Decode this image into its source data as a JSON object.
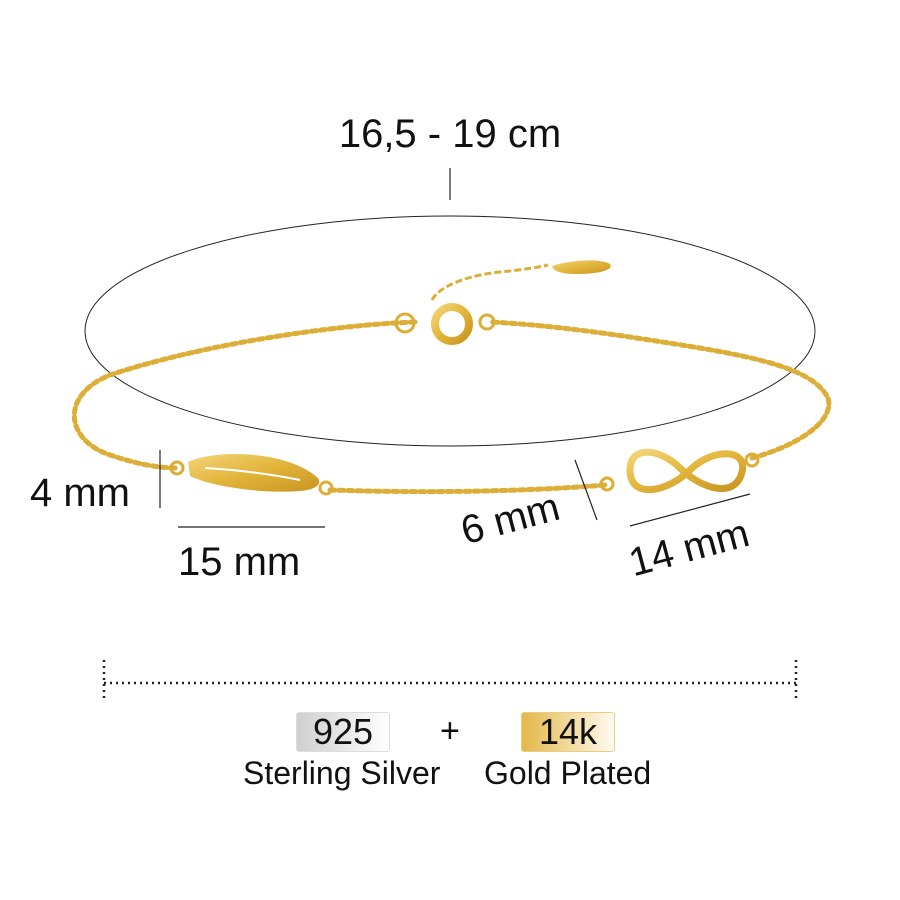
{
  "dimensions": {
    "length": "16,5 - 19 cm",
    "feather_height": "4 mm",
    "feather_width": "15 mm",
    "infinity_height": "6 mm",
    "infinity_width": "14 mm"
  },
  "material": {
    "silver_badge": "925",
    "silver_label": "Sterling Silver",
    "plus": "+",
    "gold_badge": "14k",
    "gold_label": "Gold Plated"
  },
  "colors": {
    "gold": "#e2b43a",
    "silver": "#d8d8d8"
  }
}
